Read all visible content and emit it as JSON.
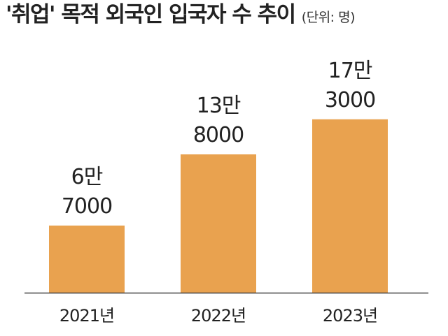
{
  "chart_data": {
    "type": "bar",
    "title": "'취업' 목적 외국인 입국자 수 추이",
    "unit_label": "(단위: 명)",
    "categories": [
      "2021년",
      "2022년",
      "2023년"
    ],
    "values": [
      67000,
      138000,
      173000
    ],
    "value_labels": [
      [
        "6만",
        "7000"
      ],
      [
        "13만",
        "8000"
      ],
      [
        "17만",
        "3000"
      ]
    ],
    "ylim": [
      0,
      230000
    ],
    "grid": false,
    "legend": "none",
    "bar_color": "#E9A24F",
    "axis_color": "#444444"
  }
}
